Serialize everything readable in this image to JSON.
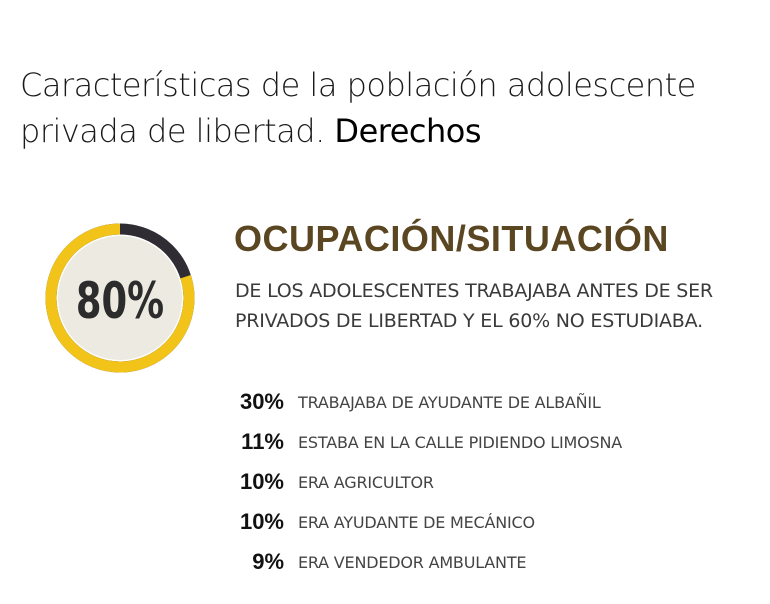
{
  "title": {
    "text": "Características de la población adolescente privada de libertad.",
    "bold": "Derechos"
  },
  "heading": "OCUPACIÓN/SITUACIÓN",
  "description": "DE LOS ADOLESCENTES TRABAJABA ANTES DE SER PRIVADOS DE LIBERTAD Y EL 60% NO ESTUDIABA.",
  "colors": {
    "ring_fill": "#f2c318",
    "ring_track": "#2f2d33",
    "inner": "#edeae2",
    "heading": "#5b4622"
  },
  "chart_data": [
    {
      "type": "pie",
      "label": "80%",
      "values": [
        80,
        20
      ]
    },
    {
      "type": "table",
      "rows": [
        {
          "value": "30%",
          "label": "TRABAJABA DE AYUDANTE DE ALBAÑIL"
        },
        {
          "value": "11%",
          "label": "ESTABA EN LA CALLE PIDIENDO LIMOSNA"
        },
        {
          "value": "10%",
          "label": "ERA AGRICULTOR"
        },
        {
          "value": "10%",
          "label": "ERA AYUDANTE DE MECÁNICO"
        },
        {
          "value": "9%",
          "label": "ERA VENDEDOR AMBULANTE"
        }
      ]
    }
  ]
}
